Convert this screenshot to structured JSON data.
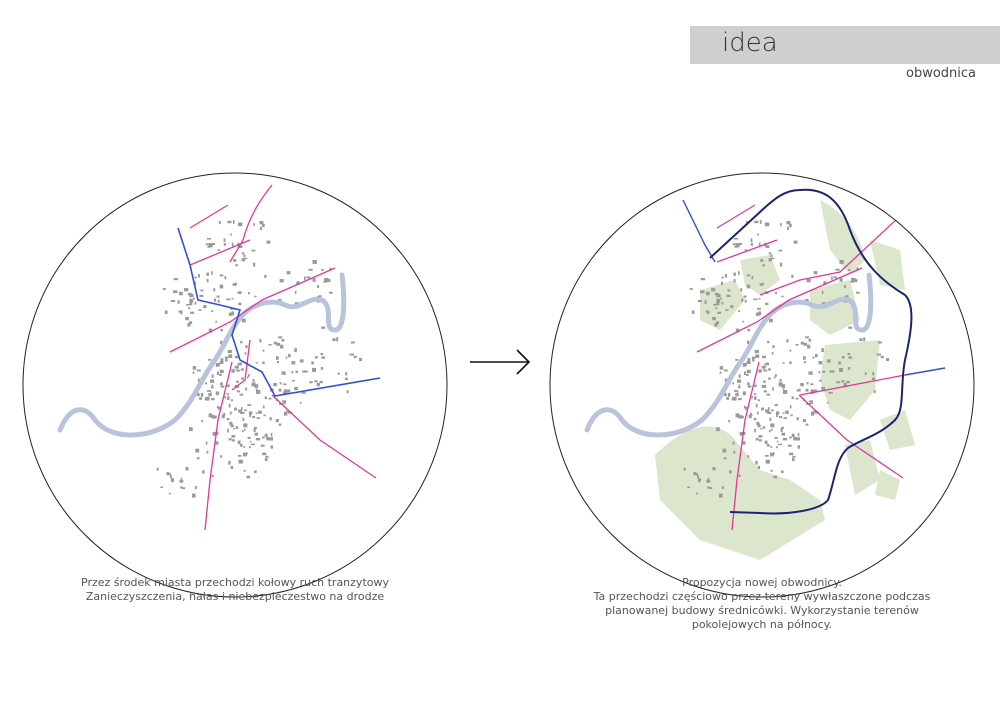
{
  "header": {
    "title": "idea",
    "subtitle": "obwodnica"
  },
  "left_panel": {
    "caption_lines": [
      "Przez środek miasta przechodzi kołowy ruch tranzytowy",
      "Zanieczyszczenia, hałas i niebezpieczestwo na drodze"
    ]
  },
  "right_panel": {
    "caption_lines": [
      "Propozycja nowej obwodnicy.",
      "Ta przechodzi częściowo przez tereny wywłaszczone podczas",
      "planowanej budowy średnicówki. Wykorzystanie terenów",
      "pokolejowych na północy."
    ]
  },
  "arrow_icon": "arrow-right-icon",
  "colors": {
    "river": "#b9c3dc",
    "transit_road": "#2f4fd8",
    "local_roads": "#e0399b",
    "ring_road": "#1c2470",
    "green_areas": "#dbe6cc",
    "buildings": "#9a9a9a",
    "title_bar": "#cfcfcf"
  }
}
